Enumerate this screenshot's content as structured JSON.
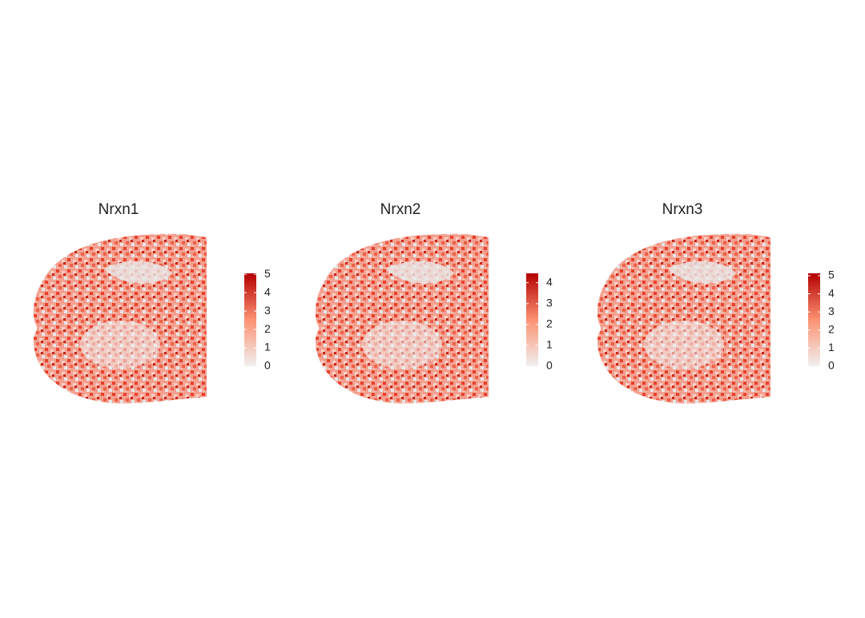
{
  "chart_data": [
    {
      "type": "spatial",
      "title": "Nrxn1",
      "colors": [
        "#f0f0f0",
        "#fc9272",
        "#b30000"
      ],
      "clim": [
        0,
        5.05
      ],
      "cticks": [
        0,
        1,
        2,
        3,
        4,
        5
      ]
    },
    {
      "type": "spatial",
      "title": "Nrxn2",
      "colors": [
        "#f0f0f0",
        "#fc9272",
        "#b30000"
      ],
      "clim": [
        0,
        4.45
      ],
      "cticks": [
        0,
        1,
        2,
        3,
        4
      ]
    },
    {
      "type": "spatial",
      "title": "Nrxn3",
      "colors": [
        "#f0f0f0",
        "#fc9272",
        "#b30000"
      ],
      "clim": [
        0,
        5.13
      ],
      "cticks": [
        0,
        1,
        2,
        3,
        4,
        5
      ]
    }
  ]
}
